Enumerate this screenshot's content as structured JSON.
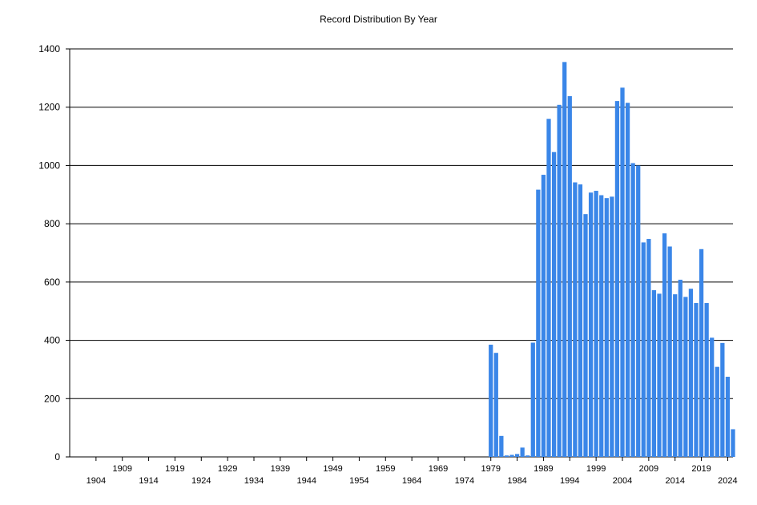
{
  "chart_data": {
    "type": "bar",
    "title": "Record Distribution By Year",
    "xlabel": "",
    "ylabel": "",
    "ylim": [
      0,
      1400
    ],
    "yticks": [
      "0",
      "200",
      "400",
      "600",
      "800",
      "1000",
      "1200",
      "1400"
    ],
    "xlim": [
      1899,
      2025
    ],
    "xticks_upper": [
      "1909",
      "1919",
      "1929",
      "1939",
      "1949",
      "1959",
      "1969",
      "1979",
      "1989",
      "1999",
      "2009",
      "2019"
    ],
    "xticks_lower": [
      "1904",
      "1914",
      "1924",
      "1934",
      "1944",
      "1954",
      "1964",
      "1974",
      "1984",
      "1994",
      "2004",
      "2014",
      "2024"
    ],
    "grid": true,
    "legend": "none",
    "bar_color": "#3a86e8",
    "years": [
      1979,
      1980,
      1981,
      1982,
      1983,
      1984,
      1985,
      1986,
      1987,
      1988,
      1989,
      1990,
      1991,
      1992,
      1993,
      1994,
      1995,
      1996,
      1997,
      1998,
      1999,
      2000,
      2001,
      2002,
      2003,
      2004,
      2005,
      2006,
      2007,
      2008,
      2009,
      2010,
      2011,
      2012,
      2013,
      2014,
      2015,
      2016,
      2017,
      2018,
      2019,
      2020,
      2021,
      2022,
      2023,
      2024,
      2025
    ],
    "values": [
      385,
      357,
      72,
      5,
      7,
      10,
      32,
      5,
      392,
      917,
      968,
      1160,
      1046,
      1208,
      1355,
      1238,
      942,
      935,
      833,
      907,
      913,
      898,
      888,
      893,
      1221,
      1267,
      1215,
      1008,
      1000,
      736,
      748,
      572,
      560,
      767,
      722,
      558,
      608,
      549,
      577,
      528,
      713,
      528,
      409,
      309,
      391,
      275,
      95
    ]
  }
}
